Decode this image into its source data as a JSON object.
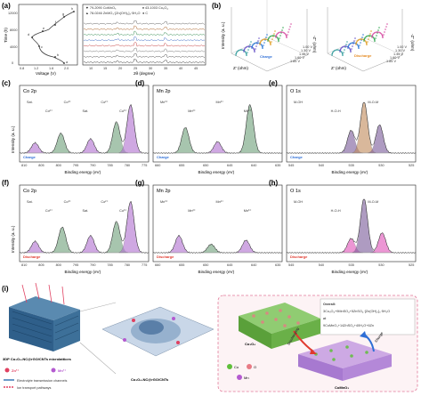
{
  "panels": {
    "a": {
      "label": "(a)",
      "left": {
        "ylabel": "Time (h)",
        "xlabel": "Voltage (V)",
        "yticks": [
          "0",
          "4000",
          "8000",
          "12000"
        ],
        "xticks": [
          "0.8",
          "1.2",
          "1.6",
          "2.0"
        ],
        "points": [
          "a",
          "b",
          "c",
          "d",
          "e",
          "f",
          "g",
          "h"
        ]
      },
      "right": {
        "xlabel": "2θ (degree)",
        "ylabel": "Intensity (a. u.)",
        "xticks": [
          "10",
          "15",
          "20",
          "25",
          "30",
          "35",
          "40",
          "45"
        ],
        "legend": [
          {
            "symbol": "▼",
            "text": "79-2090 CoMnO₃"
          },
          {
            "symbol": "♦",
            "text": "43-1003 Co₃O₄"
          },
          {
            "symbol": "▲",
            "text": "78-0246 ZnMO₃·[Zn(OH)₂]₃·5H₂O"
          },
          {
            "symbol": "●",
            "text": "C"
          }
        ]
      }
    },
    "b": {
      "label": "(b)",
      "left": {
        "zlabel": "-Z'' (ohm)",
        "xlabel": "Z' (ohm)",
        "ylabel": "Intensity (a. u.)",
        "tag": "Charge",
        "voltages": [
          "1.85 V",
          "1.60 V",
          "1.45 V",
          "1.30 V",
          "1.00 V"
        ],
        "zticks": [
          "0",
          "20",
          "40",
          "60",
          "80",
          "100",
          "120"
        ]
      },
      "right": {
        "zlabel": "-Z'' (ohm)",
        "xlabel": "Z' (ohm)",
        "tag": "Discharge",
        "voltages": [
          "1.85 V",
          "1.60 V",
          "1.45 V",
          "1.30 V",
          "1.00 V"
        ],
        "zticks": [
          "0",
          "20",
          "40",
          "60",
          "80",
          "100",
          "120"
        ]
      }
    },
    "c": {
      "label": "(c)",
      "title": "Co 2p",
      "tag": "Charge",
      "xlabel": "Binding energy (eV)",
      "ylabel": "Intensity (a. u.)",
      "xticks": [
        "810",
        "805",
        "800",
        "795",
        "790",
        "785",
        "780",
        "775"
      ],
      "anns": [
        "Sat.",
        "Co²⁺",
        "Co³⁺",
        "Sat.",
        "Co²⁺",
        "Co³⁺"
      ]
    },
    "d": {
      "label": "(d)",
      "title": "Mn 2p",
      "tag": "Charge",
      "xlabel": "Binding energy (eV)",
      "xticks": [
        "660",
        "655",
        "650",
        "645",
        "640",
        "635"
      ],
      "anns": [
        "Mn³⁺",
        "Mn²⁺",
        "Mn³⁺",
        "Mn²⁺"
      ]
    },
    "e": {
      "label": "(e)",
      "title": "O 1s",
      "tag": "Charge",
      "xlabel": "Binding energy (eV)",
      "xticks": [
        "545",
        "540",
        "535",
        "530",
        "525"
      ],
      "anns": [
        "M-OH",
        "H-O-H",
        "M-O-M"
      ]
    },
    "f": {
      "label": "(f)",
      "title": "Co 2p",
      "tag": "Discharge",
      "xlabel": "Binding energy (eV)",
      "ylabel": "Intensity (a. u.)",
      "xticks": [
        "810",
        "805",
        "800",
        "795",
        "790",
        "785",
        "780",
        "775"
      ],
      "anns": [
        "Sat.",
        "Co²⁺",
        "Co³⁺",
        "Sat.",
        "Co²⁺",
        "Co³⁺"
      ]
    },
    "g": {
      "label": "(g)",
      "title": "Mn 2p",
      "tag": "Discharge",
      "xlabel": "Binding energy (eV)",
      "xticks": [
        "660",
        "655",
        "650",
        "645",
        "640",
        "635"
      ],
      "anns": [
        "Mn³⁺",
        "Mn²⁺",
        "Mn²⁺",
        "Mn³⁺"
      ]
    },
    "h": {
      "label": "(h)",
      "title": "O 1s",
      "tag": "Discharge",
      "xlabel": "Binding energy (eV)",
      "xticks": [
        "545",
        "540",
        "535",
        "530",
        "525"
      ],
      "anns": [
        "M-OH",
        "H-O-H",
        "M-O-M"
      ]
    },
    "i": {
      "label": "(i)",
      "struct_label": "3DP Co₃O₄-NC@rGO/CNTs microlattices",
      "zn_label": "Zn²⁺",
      "mn_label": "Mn²⁺",
      "electrolyte_label": "Electrolyte transmission channels",
      "ion_label": "Ion transport pathways",
      "composite_label": "Co₃O₄-NC@rGO/CNTs",
      "co3o4_label": "Co₃O₄",
      "comno3_label": "CoMnO₃",
      "charge_label": "Charge",
      "discharge_label": "Discharging",
      "overall_title": "Overall:",
      "eq1": "3Co₃O₄+9MnSO₄+5ZnSO₄·[Zn(OH)₂]₃·5H₂O",
      "eq_arrow": "⇌",
      "eq2": "9CoMnO₃+14ZnSO₄+40H₂O+6Zn",
      "legend": [
        {
          "text": "Co",
          "color": "#5fbf3a"
        },
        {
          "text": "O",
          "color": "#e87a85"
        },
        {
          "text": "Mn",
          "color": "#b45ad0"
        }
      ]
    }
  },
  "colors": {
    "charge": "#2f6fd6",
    "discharge": "#e0392e",
    "co_fill": "#b070d0",
    "mn_fill": "#6ea07a",
    "o_fill": "#7a5a99"
  }
}
